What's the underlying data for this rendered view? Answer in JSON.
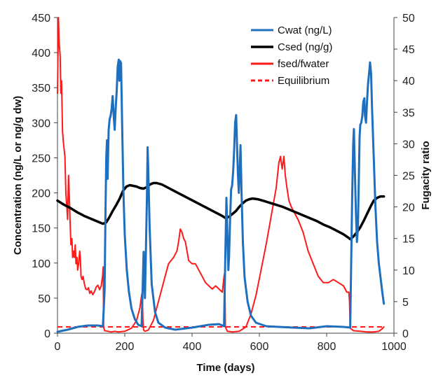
{
  "chart_data": {
    "type": "line",
    "xlabel": "Time (days)",
    "ylabel": "Concentration (ng/L or ng/g dw)",
    "y2label": "Fugacity ratio",
    "xlim": [
      0,
      1000
    ],
    "ylim": [
      0,
      450
    ],
    "y2lim": [
      0,
      50
    ],
    "x_ticks": [
      0,
      200,
      400,
      600,
      800,
      1000
    ],
    "y_ticks": [
      0,
      50,
      100,
      150,
      200,
      250,
      300,
      350,
      400,
      450
    ],
    "y2_ticks": [
      0,
      5,
      10,
      15,
      20,
      25,
      30,
      35,
      40,
      45,
      50
    ],
    "grid": false,
    "legend_position": "top-right",
    "series": [
      {
        "name": "Cwat (ng/L)",
        "axis": "left",
        "color": "#1f6fbf",
        "style": "solid",
        "points": [
          [
            0,
            2
          ],
          [
            30,
            5
          ],
          [
            60,
            9
          ],
          [
            90,
            11
          ],
          [
            120,
            11
          ],
          [
            135,
            10
          ],
          [
            140,
            60
          ],
          [
            143,
            180
          ],
          [
            145,
            250
          ],
          [
            147,
            275
          ],
          [
            149,
            220
          ],
          [
            152,
            290
          ],
          [
            155,
            305
          ],
          [
            158,
            310
          ],
          [
            161,
            320
          ],
          [
            164,
            338
          ],
          [
            167,
            310
          ],
          [
            170,
            290
          ],
          [
            173,
            320
          ],
          [
            176,
            345
          ],
          [
            179,
            380
          ],
          [
            182,
            390
          ],
          [
            184,
            360
          ],
          [
            186,
            388
          ],
          [
            189,
            385
          ],
          [
            192,
            300
          ],
          [
            196,
            200
          ],
          [
            200,
            140
          ],
          [
            206,
            90
          ],
          [
            212,
            60
          ],
          [
            220,
            35
          ],
          [
            230,
            20
          ],
          [
            240,
            12
          ],
          [
            250,
            10
          ],
          [
            253,
            60
          ],
          [
            256,
            116
          ],
          [
            258,
            80
          ],
          [
            260,
            50
          ],
          [
            263,
            120
          ],
          [
            266,
            200
          ],
          [
            268,
            265
          ],
          [
            270,
            230
          ],
          [
            274,
            150
          ],
          [
            280,
            70
          ],
          [
            290,
            30
          ],
          [
            300,
            15
          ],
          [
            320,
            8
          ],
          [
            350,
            5
          ],
          [
            400,
            8
          ],
          [
            450,
            12
          ],
          [
            480,
            13
          ],
          [
            495,
            10
          ],
          [
            500,
            140
          ],
          [
            502,
            193
          ],
          [
            504,
            160
          ],
          [
            506,
            120
          ],
          [
            508,
            90
          ],
          [
            510,
            110
          ],
          [
            513,
            160
          ],
          [
            516,
            205
          ],
          [
            519,
            210
          ],
          [
            522,
            230
          ],
          [
            525,
            260
          ],
          [
            528,
            300
          ],
          [
            531,
            311
          ],
          [
            533,
            280
          ],
          [
            536,
            230
          ],
          [
            539,
            200
          ],
          [
            542,
            240
          ],
          [
            544,
            268
          ],
          [
            547,
            200
          ],
          [
            551,
            130
          ],
          [
            556,
            80
          ],
          [
            565,
            45
          ],
          [
            575,
            25
          ],
          [
            590,
            15
          ],
          [
            620,
            10
          ],
          [
            700,
            8
          ],
          [
            750,
            7
          ],
          [
            800,
            10
          ],
          [
            850,
            9
          ],
          [
            870,
            8
          ],
          [
            873,
            100
          ],
          [
            876,
            200
          ],
          [
            879,
            270
          ],
          [
            881,
            291
          ],
          [
            884,
            230
          ],
          [
            887,
            170
          ],
          [
            890,
            130
          ],
          [
            893,
            150
          ],
          [
            896,
            230
          ],
          [
            898,
            280
          ],
          [
            900,
            297
          ],
          [
            903,
            300
          ],
          [
            906,
            310
          ],
          [
            909,
            330
          ],
          [
            912,
            335
          ],
          [
            914,
            310
          ],
          [
            917,
            300
          ],
          [
            920,
            330
          ],
          [
            923,
            355
          ],
          [
            926,
            370
          ],
          [
            929,
            386
          ],
          [
            932,
            370
          ],
          [
            935,
            320
          ],
          [
            940,
            250
          ],
          [
            945,
            180
          ],
          [
            950,
            130
          ],
          [
            955,
            100
          ],
          [
            960,
            80
          ],
          [
            965,
            60
          ],
          [
            970,
            42
          ]
        ]
      },
      {
        "name": "Csed (ng/g)",
        "axis": "left",
        "color": "#000000",
        "style": "solid",
        "points": [
          [
            0,
            189
          ],
          [
            20,
            183
          ],
          [
            40,
            178
          ],
          [
            60,
            172
          ],
          [
            80,
            167
          ],
          [
            100,
            163
          ],
          [
            120,
            159
          ],
          [
            135,
            156
          ],
          [
            145,
            158
          ],
          [
            155,
            166
          ],
          [
            165,
            175
          ],
          [
            175,
            183
          ],
          [
            185,
            192
          ],
          [
            195,
            203
          ],
          [
            205,
            209
          ],
          [
            215,
            211
          ],
          [
            225,
            210
          ],
          [
            235,
            209
          ],
          [
            245,
            207
          ],
          [
            255,
            206
          ],
          [
            265,
            208
          ],
          [
            275,
            212
          ],
          [
            285,
            214
          ],
          [
            295,
            214
          ],
          [
            310,
            212
          ],
          [
            330,
            207
          ],
          [
            350,
            202
          ],
          [
            370,
            197
          ],
          [
            390,
            192
          ],
          [
            410,
            187
          ],
          [
            430,
            182
          ],
          [
            450,
            177
          ],
          [
            470,
            172
          ],
          [
            490,
            167
          ],
          [
            500,
            164
          ],
          [
            510,
            166
          ],
          [
            520,
            170
          ],
          [
            530,
            174
          ],
          [
            540,
            180
          ],
          [
            550,
            185
          ],
          [
            560,
            189
          ],
          [
            570,
            191
          ],
          [
            580,
            192
          ],
          [
            595,
            191
          ],
          [
            610,
            189
          ],
          [
            630,
            186
          ],
          [
            650,
            183
          ],
          [
            670,
            180
          ],
          [
            690,
            176
          ],
          [
            710,
            172
          ],
          [
            730,
            168
          ],
          [
            750,
            164
          ],
          [
            770,
            160
          ],
          [
            790,
            155
          ],
          [
            810,
            151
          ],
          [
            830,
            146
          ],
          [
            850,
            141
          ],
          [
            865,
            136
          ],
          [
            870,
            134
          ],
          [
            880,
            138
          ],
          [
            890,
            144
          ],
          [
            900,
            151
          ],
          [
            910,
            160
          ],
          [
            920,
            170
          ],
          [
            930,
            180
          ],
          [
            940,
            189
          ],
          [
            950,
            193
          ],
          [
            960,
            195
          ],
          [
            970,
            195
          ]
        ]
      },
      {
        "name": "fsed/fwater",
        "axis": "right",
        "color": "#ff1a1a",
        "style": "solid",
        "points": [
          [
            0,
            38
          ],
          [
            3,
            50
          ],
          [
            5,
            46
          ],
          [
            8,
            44
          ],
          [
            10,
            38
          ],
          [
            12,
            40
          ],
          [
            15,
            32
          ],
          [
            18,
            30
          ],
          [
            22,
            28
          ],
          [
            25,
            22
          ],
          [
            28,
            20
          ],
          [
            30,
            18
          ],
          [
            33,
            25
          ],
          [
            35,
            22
          ],
          [
            38,
            17
          ],
          [
            40,
            14
          ],
          [
            43,
            15
          ],
          [
            45,
            12
          ],
          [
            48,
            13
          ],
          [
            50,
            12
          ],
          [
            53,
            14
          ],
          [
            55,
            11
          ],
          [
            58,
            12
          ],
          [
            60,
            10
          ],
          [
            63,
            11
          ],
          [
            66,
            13
          ],
          [
            68,
            12
          ],
          [
            70,
            9
          ],
          [
            73,
            8.5
          ],
          [
            76,
            9
          ],
          [
            80,
            7.8
          ],
          [
            84,
            7
          ],
          [
            88,
            6.9
          ],
          [
            92,
            7.2
          ],
          [
            96,
            6.3
          ],
          [
            100,
            6.7
          ],
          [
            105,
            6.1
          ],
          [
            110,
            6.6
          ],
          [
            115,
            7.3
          ],
          [
            120,
            7.6
          ],
          [
            125,
            6.9
          ],
          [
            130,
            7.5
          ],
          [
            134,
            9
          ],
          [
            136,
            10.5
          ],
          [
            137,
            1
          ],
          [
            140,
            0.4
          ],
          [
            150,
            0.3
          ],
          [
            160,
            0.2
          ],
          [
            170,
            0.3
          ],
          [
            180,
            0.2
          ],
          [
            200,
            0.3
          ],
          [
            220,
            0.8
          ],
          [
            235,
            2
          ],
          [
            245,
            4
          ],
          [
            250,
            6
          ],
          [
            252,
            6.5
          ],
          [
            254,
            2
          ],
          [
            256,
            0.5
          ],
          [
            260,
            0.3
          ],
          [
            270,
            0.5
          ],
          [
            285,
            2
          ],
          [
            300,
            5
          ],
          [
            315,
            8
          ],
          [
            330,
            11
          ],
          [
            345,
            12
          ],
          [
            355,
            13
          ],
          [
            360,
            14.5
          ],
          [
            365,
            16.5
          ],
          [
            370,
            16
          ],
          [
            375,
            15
          ],
          [
            380,
            14.5
          ],
          [
            385,
            13
          ],
          [
            390,
            11.5
          ],
          [
            400,
            11
          ],
          [
            410,
            11
          ],
          [
            420,
            10
          ],
          [
            430,
            9
          ],
          [
            440,
            8
          ],
          [
            450,
            7.5
          ],
          [
            460,
            7
          ],
          [
            470,
            7.5
          ],
          [
            480,
            7
          ],
          [
            490,
            6.5
          ],
          [
            495,
            9
          ],
          [
            497,
            9.6
          ],
          [
            499,
            1
          ],
          [
            505,
            0.3
          ],
          [
            520,
            0.2
          ],
          [
            540,
            0.3
          ],
          [
            560,
            1
          ],
          [
            575,
            3
          ],
          [
            590,
            6
          ],
          [
            605,
            10
          ],
          [
            620,
            14
          ],
          [
            630,
            17
          ],
          [
            640,
            20
          ],
          [
            650,
            23
          ],
          [
            658,
            27
          ],
          [
            663,
            28
          ],
          [
            668,
            26
          ],
          [
            673,
            28
          ],
          [
            677,
            25
          ],
          [
            682,
            23
          ],
          [
            688,
            21
          ],
          [
            695,
            20
          ],
          [
            705,
            19
          ],
          [
            715,
            18
          ],
          [
            730,
            16
          ],
          [
            745,
            13
          ],
          [
            760,
            11
          ],
          [
            775,
            9
          ],
          [
            790,
            8
          ],
          [
            805,
            8
          ],
          [
            820,
            8.5
          ],
          [
            835,
            8
          ],
          [
            850,
            7.5
          ],
          [
            860,
            6.5
          ],
          [
            866,
            6.5
          ],
          [
            868,
            5
          ],
          [
            870,
            0.8
          ],
          [
            880,
            0.4
          ],
          [
            900,
            0.3
          ],
          [
            920,
            0.2
          ],
          [
            940,
            0.2
          ],
          [
            955,
            0.3
          ],
          [
            965,
            0.7
          ],
          [
            970,
            1
          ]
        ]
      },
      {
        "name": "Equilibrium",
        "axis": "right",
        "color": "#ff1a1a",
        "style": "dashed",
        "points": [
          [
            0,
            1
          ],
          [
            970,
            1
          ]
        ]
      }
    ]
  }
}
